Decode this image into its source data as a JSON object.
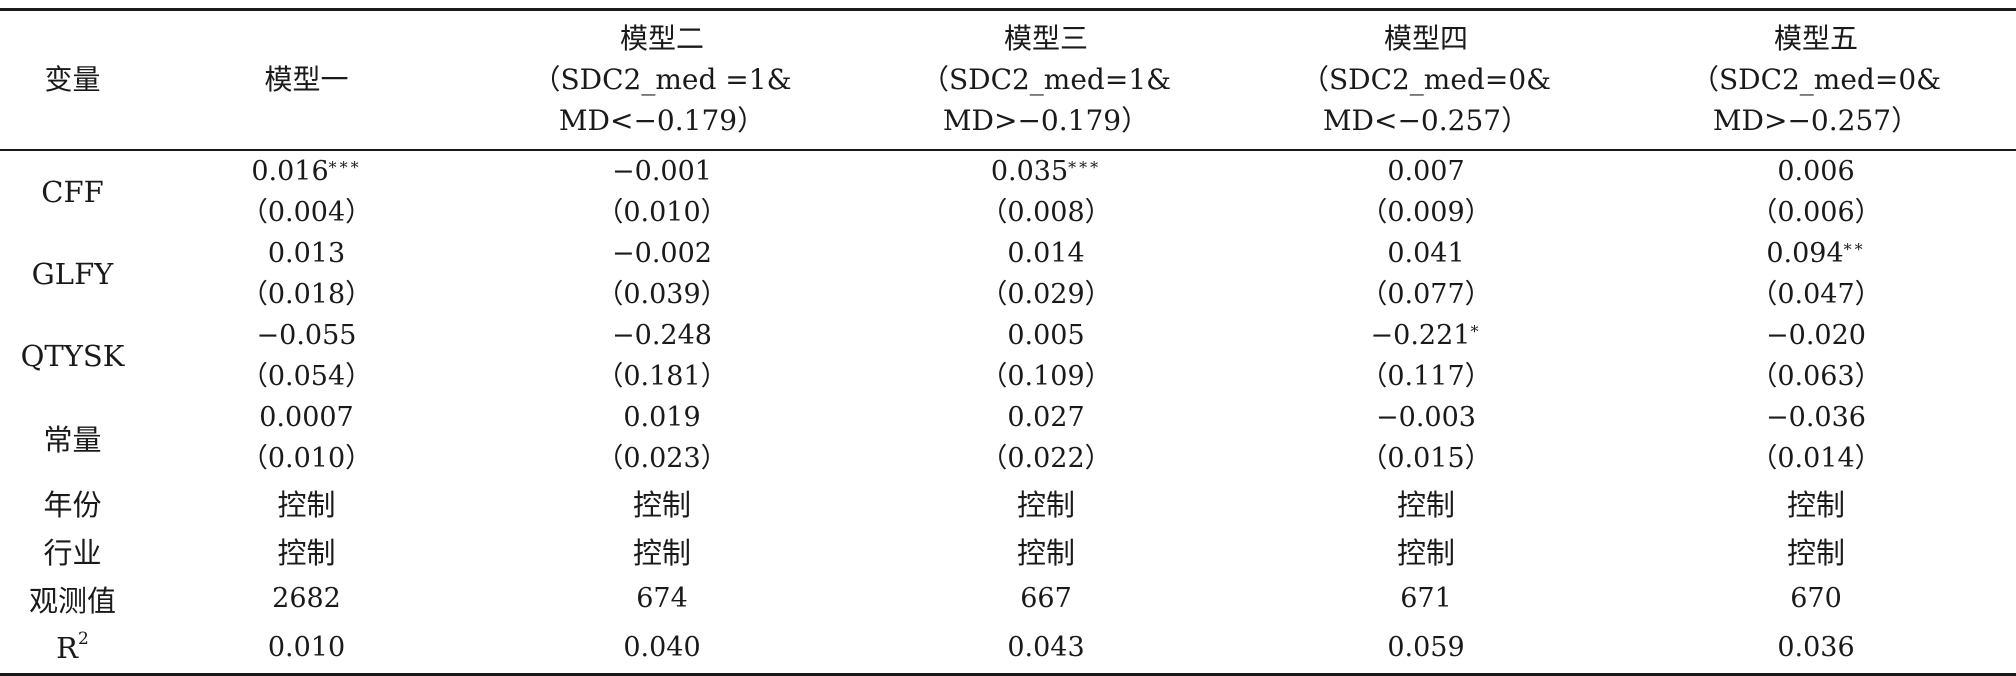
{
  "header": {
    "variable": "变量",
    "model1": "模型一",
    "model2": {
      "title": "模型二",
      "line2": "（SDC2_med =1&",
      "line3": "MD<−0.179）"
    },
    "model3": {
      "title": "模型三",
      "line2": "（SDC2_med=1&",
      "line3": "MD>−0.179）"
    },
    "model4": {
      "title": "模型四",
      "line2": "（SDC2_med=0&",
      "line3": "MD<−0.257）"
    },
    "model5": {
      "title": "模型五",
      "line2": "（SDC2_med=0&",
      "line3": "MD>−0.257）"
    }
  },
  "rows": [
    {
      "label": "CFF",
      "cells": [
        {
          "coef": "0.016",
          "stars": "***",
          "se": "（0.004）"
        },
        {
          "coef": "−0.001",
          "stars": "",
          "se": "（0.010）"
        },
        {
          "coef": "0.035",
          "stars": "***",
          "se": "（0.008）"
        },
        {
          "coef": "0.007",
          "stars": "",
          "se": "（0.009）"
        },
        {
          "coef": "0.006",
          "stars": "",
          "se": "（0.006）"
        }
      ]
    },
    {
      "label": "GLFY",
      "cells": [
        {
          "coef": "0.013",
          "stars": "",
          "se": "（0.018）"
        },
        {
          "coef": "−0.002",
          "stars": "",
          "se": "（0.039）"
        },
        {
          "coef": "0.014",
          "stars": "",
          "se": "（0.029）"
        },
        {
          "coef": "0.041",
          "stars": "",
          "se": "（0.077）"
        },
        {
          "coef": "0.094",
          "stars": "**",
          "se": "（0.047）"
        }
      ]
    },
    {
      "label": "QTYSK",
      "cells": [
        {
          "coef": "−0.055",
          "stars": "",
          "se": "（0.054）"
        },
        {
          "coef": "−0.248",
          "stars": "",
          "se": "（0.181）"
        },
        {
          "coef": "0.005",
          "stars": "",
          "se": "（0.109）"
        },
        {
          "coef": "−0.221",
          "stars": "*",
          "se": "（0.117）"
        },
        {
          "coef": "−0.020",
          "stars": "",
          "se": "（0.063）"
        }
      ]
    },
    {
      "label": "常量",
      "cells": [
        {
          "coef": "0.0007",
          "stars": "",
          "se": "（0.010）"
        },
        {
          "coef": "0.019",
          "stars": "",
          "se": "（0.023）"
        },
        {
          "coef": "0.027",
          "stars": "",
          "se": "（0.022）"
        },
        {
          "coef": "−0.003",
          "stars": "",
          "se": "（0.015）"
        },
        {
          "coef": "−0.036",
          "stars": "",
          "se": "（0.014）"
        }
      ]
    }
  ],
  "controls": [
    {
      "label": "年份",
      "values": [
        "控制",
        "控制",
        "控制",
        "控制",
        "控制"
      ]
    },
    {
      "label": "行业",
      "values": [
        "控制",
        "控制",
        "控制",
        "控制",
        "控制"
      ]
    }
  ],
  "observations": {
    "label": "观测值",
    "values": [
      "2682",
      "674",
      "667",
      "671",
      "670"
    ]
  },
  "r2": {
    "label": "R",
    "sup": "2",
    "values": [
      "0.010",
      "0.040",
      "0.043",
      "0.059",
      "0.036"
    ]
  }
}
